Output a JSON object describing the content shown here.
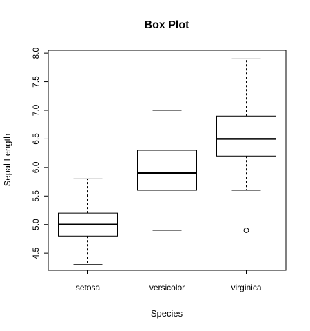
{
  "chart_data": {
    "type": "box",
    "title": "Box Plot",
    "xlabel": "Species",
    "ylabel": "Sepal Length",
    "ylim": [
      4.2,
      8.05
    ],
    "yticks": [
      "4.5",
      "5.0",
      "5.5",
      "6.0",
      "6.5",
      "7.0",
      "7.5",
      "8.0"
    ],
    "categories": [
      "setosa",
      "versicolor",
      "virginica"
    ],
    "series": [
      {
        "category": "setosa",
        "lower_whisker": 4.3,
        "q1": 4.8,
        "median": 5.0,
        "q3": 5.2,
        "upper_whisker": 5.8,
        "outliers": []
      },
      {
        "category": "versicolor",
        "lower_whisker": 4.9,
        "q1": 5.6,
        "median": 5.9,
        "q3": 6.3,
        "upper_whisker": 7.0,
        "outliers": []
      },
      {
        "category": "virginica",
        "lower_whisker": 5.6,
        "q1": 6.2,
        "median": 6.5,
        "q3": 6.9,
        "upper_whisker": 7.9,
        "outliers": [
          4.9
        ]
      }
    ],
    "grid": false,
    "legend": "none",
    "colors": {
      "stroke": "#000000",
      "background": "#ffffff"
    }
  }
}
